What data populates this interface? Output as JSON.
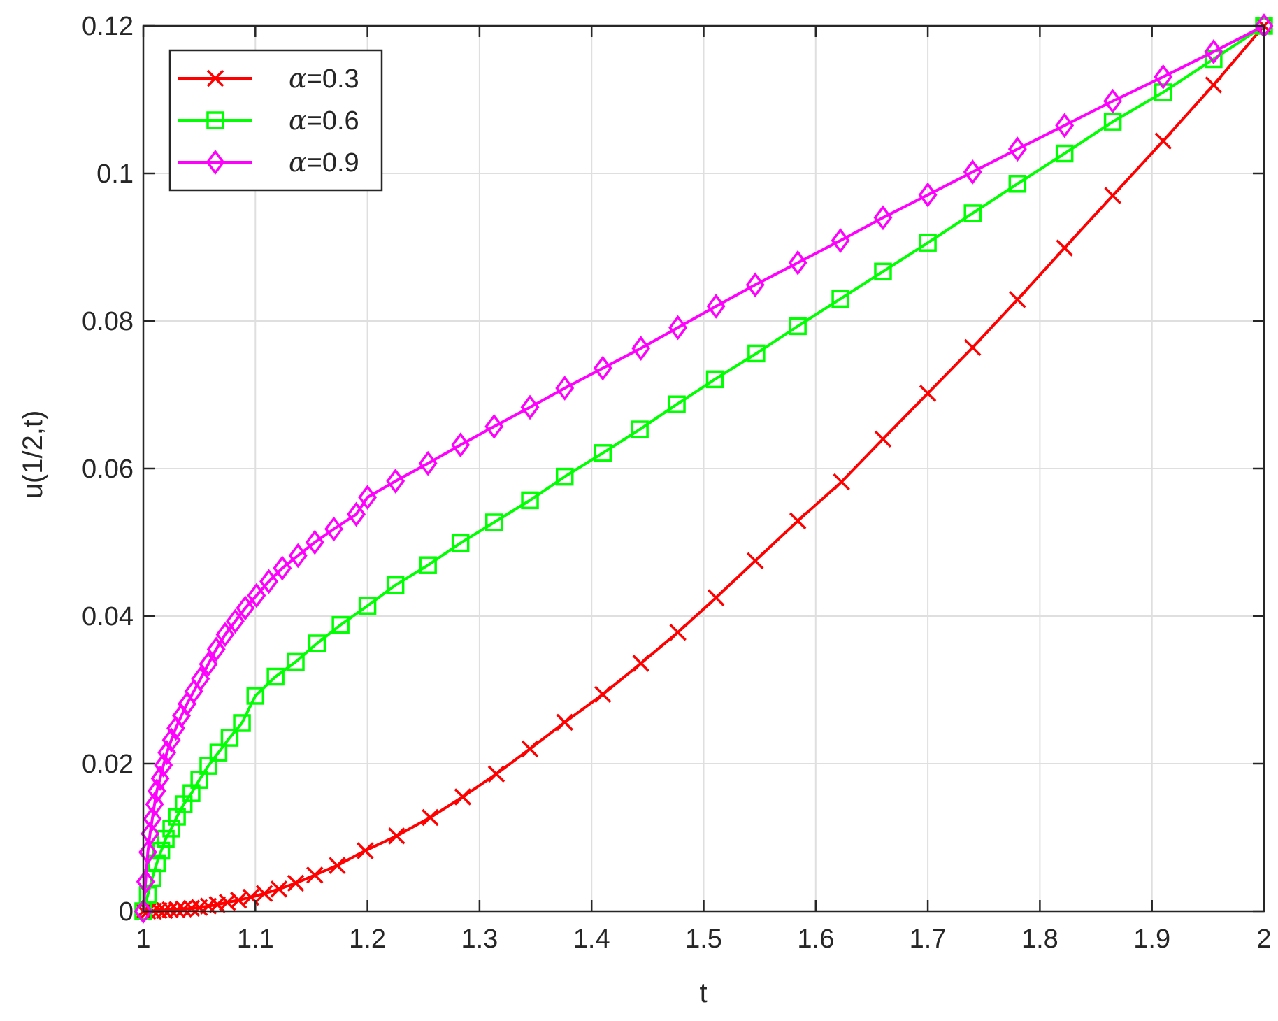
{
  "chart_data": {
    "type": "line",
    "title": "",
    "xlabel": "t",
    "ylabel": "u(1/2,t)",
    "xlim": [
      1,
      2
    ],
    "ylim": [
      0,
      0.12
    ],
    "xticks": [
      1,
      1.1,
      1.2,
      1.3,
      1.4,
      1.5,
      1.6,
      1.7,
      1.8,
      1.9,
      2
    ],
    "xtick_labels": [
      "1",
      "1.1",
      "1.2",
      "1.3",
      "1.4",
      "1.5",
      "1.6",
      "1.7",
      "1.8",
      "1.9",
      "2"
    ],
    "yticks": [
      0,
      0.02,
      0.04,
      0.06,
      0.08,
      0.1,
      0.12
    ],
    "ytick_labels": [
      "0",
      "0.02",
      "0.04",
      "0.06",
      "0.08",
      "0.1",
      "0.12"
    ],
    "grid": true,
    "legend_position": "top-left",
    "series": [
      {
        "name": "=0.3",
        "alpha_symbol": "α",
        "color": "#ff0000",
        "marker": "x",
        "x": [
          1.0,
          1.004,
          1.009,
          1.014,
          1.019,
          1.024,
          1.03,
          1.036,
          1.043,
          1.05,
          1.058,
          1.066,
          1.075,
          1.085,
          1.096,
          1.108,
          1.121,
          1.136,
          1.153,
          1.173,
          1.198,
          1.226,
          1.256,
          1.285,
          1.315,
          1.345,
          1.376,
          1.41,
          1.444,
          1.477,
          1.511,
          1.546,
          1.584,
          1.623,
          1.66,
          1.7,
          1.74,
          1.78,
          1.822,
          1.865,
          1.91,
          1.955,
          2.0
        ],
        "y": [
          0.0,
          0.0,
          0.0,
          0.0001,
          0.0001,
          0.0002,
          0.0002,
          0.0003,
          0.0004,
          0.0005,
          0.0007,
          0.0009,
          0.0012,
          0.0015,
          0.0019,
          0.0024,
          0.003,
          0.0038,
          0.0049,
          0.0062,
          0.0082,
          0.0102,
          0.0127,
          0.0155,
          0.0186,
          0.022,
          0.0256,
          0.0294,
          0.0336,
          0.0378,
          0.0425,
          0.0475,
          0.0529,
          0.0582,
          0.064,
          0.0702,
          0.0764,
          0.0829,
          0.0899,
          0.097,
          0.1044,
          0.112,
          0.12
        ]
      },
      {
        "name": "=0.6",
        "alpha_symbol": "α",
        "color": "#00ff00",
        "marker": "square",
        "x": [
          1.0,
          1.004,
          1.008,
          1.012,
          1.016,
          1.02,
          1.025,
          1.03,
          1.036,
          1.043,
          1.05,
          1.058,
          1.067,
          1.077,
          1.088,
          1.1,
          1.118,
          1.136,
          1.155,
          1.176,
          1.2,
          1.225,
          1.254,
          1.283,
          1.313,
          1.345,
          1.376,
          1.41,
          1.443,
          1.476,
          1.51,
          1.547,
          1.584,
          1.622,
          1.66,
          1.7,
          1.74,
          1.78,
          1.822,
          1.865,
          1.91,
          1.955,
          2.0
        ],
        "y": [
          0.0,
          0.0022,
          0.0045,
          0.0065,
          0.0082,
          0.0098,
          0.0112,
          0.0128,
          0.0145,
          0.016,
          0.0178,
          0.0197,
          0.0215,
          0.0235,
          0.0255,
          0.0292,
          0.0318,
          0.0338,
          0.0363,
          0.0388,
          0.0414,
          0.0442,
          0.0469,
          0.0499,
          0.0527,
          0.0557,
          0.0589,
          0.0621,
          0.0653,
          0.0687,
          0.0721,
          0.0756,
          0.0793,
          0.083,
          0.0867,
          0.0906,
          0.0946,
          0.0986,
          0.1027,
          0.107,
          0.111,
          0.1155,
          0.12
        ]
      },
      {
        "name": "=0.9",
        "alpha_symbol": "α",
        "color": "#ff00ff",
        "marker": "diamond",
        "x": [
          1.0,
          1.002,
          1.004,
          1.006,
          1.008,
          1.01,
          1.012,
          1.015,
          1.018,
          1.021,
          1.025,
          1.029,
          1.034,
          1.039,
          1.045,
          1.051,
          1.058,
          1.065,
          1.073,
          1.082,
          1.091,
          1.101,
          1.112,
          1.124,
          1.138,
          1.153,
          1.17,
          1.19,
          1.2,
          1.225,
          1.254,
          1.283,
          1.313,
          1.345,
          1.376,
          1.41,
          1.444,
          1.477,
          1.511,
          1.546,
          1.584,
          1.622,
          1.66,
          1.7,
          1.74,
          1.78,
          1.822,
          1.865,
          1.91,
          1.955,
          2.0
        ],
        "y": [
          0.0,
          0.004,
          0.008,
          0.0105,
          0.0125,
          0.0145,
          0.0163,
          0.018,
          0.0198,
          0.0215,
          0.0232,
          0.0248,
          0.0265,
          0.0281,
          0.0298,
          0.0315,
          0.0335,
          0.0355,
          0.0375,
          0.0393,
          0.0411,
          0.0428,
          0.0447,
          0.0465,
          0.0482,
          0.05,
          0.0518,
          0.0538,
          0.0561,
          0.0583,
          0.0607,
          0.0632,
          0.0657,
          0.0683,
          0.0709,
          0.0736,
          0.0763,
          0.0791,
          0.082,
          0.0849,
          0.0879,
          0.0909,
          0.094,
          0.0971,
          0.1002,
          0.1033,
          0.1065,
          0.1098,
          0.1131,
          0.1165,
          0.12
        ]
      }
    ]
  }
}
